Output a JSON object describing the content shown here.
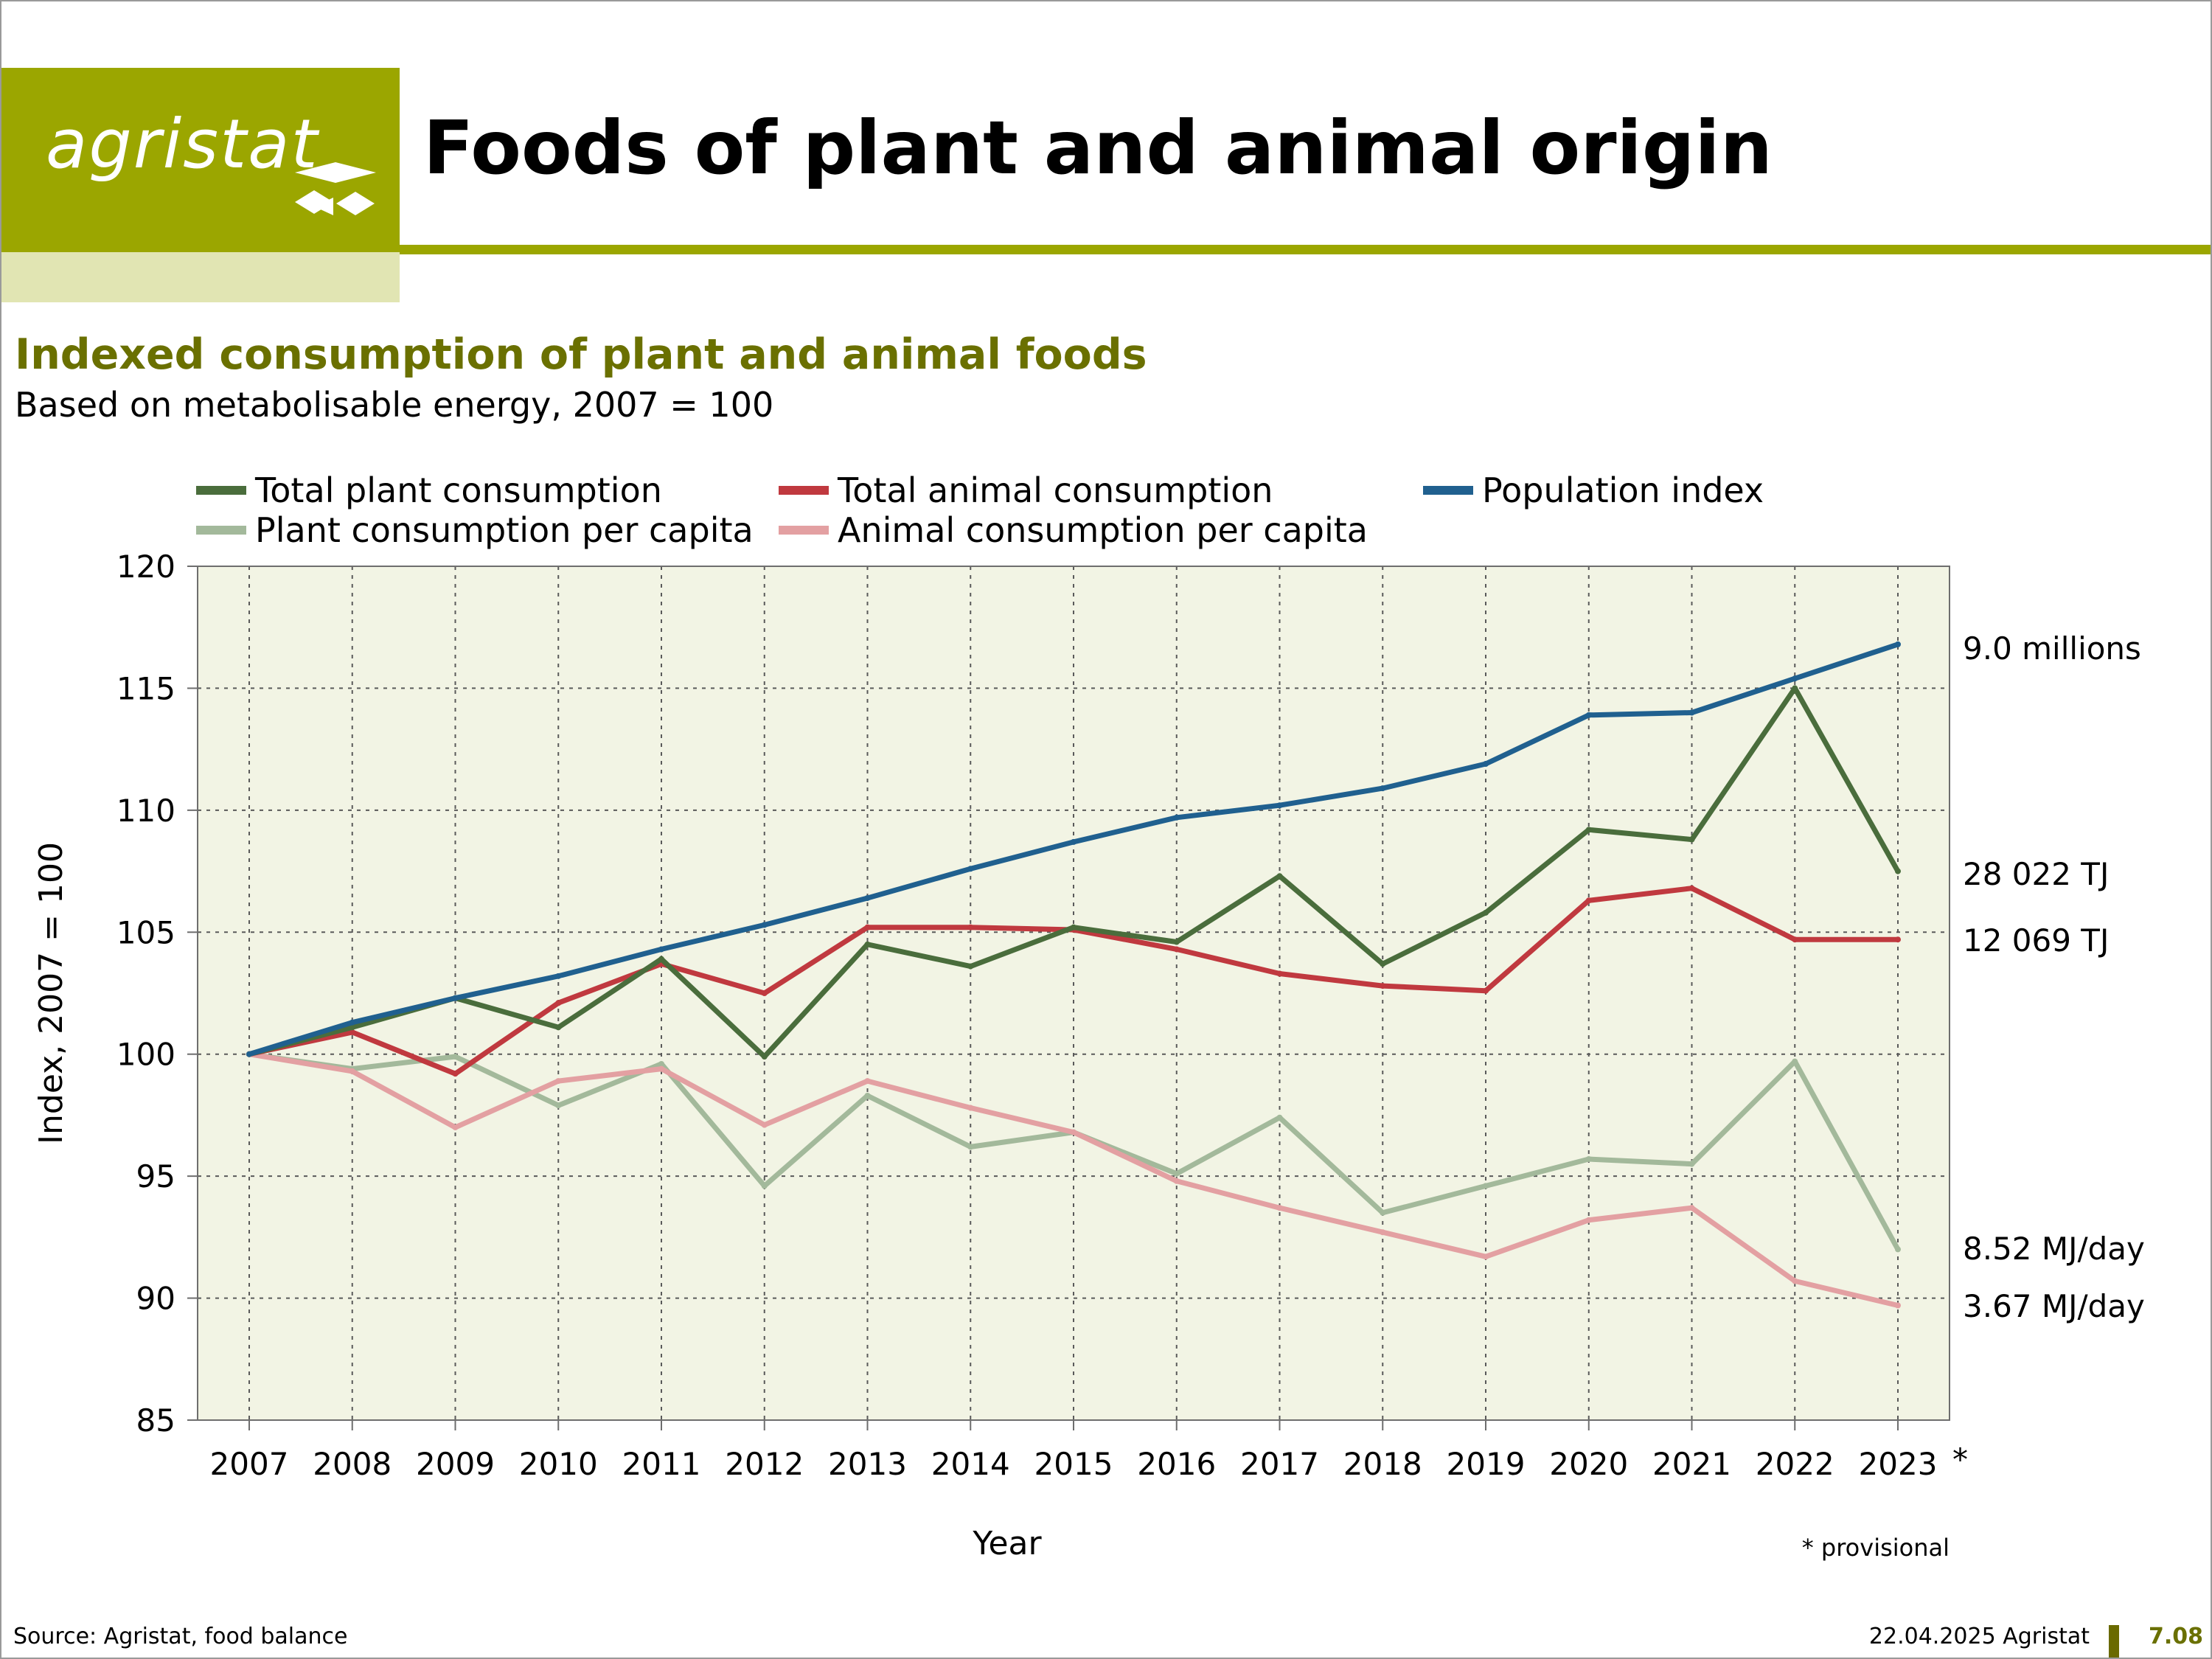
{
  "header": {
    "logo_text": "agristat",
    "title": "Foods of plant and animal origin"
  },
  "chart": {
    "subtitle": "Indexed consumption of plant and animal foods",
    "subsubtitle": "Based on metabolisable energy, 2007 = 100",
    "footnote": "* provisional",
    "provisional_marker": "*"
  },
  "footer": {
    "source": "Source: Agristat, food balance",
    "date": "22.04.2025 Agristat",
    "page_number": "7.08"
  },
  "colors": {
    "brand_olive": "#9ba600",
    "brand_light": "#e1e5b3",
    "plot_background": "#f2f4e4",
    "total_plant": "#4a6d3c",
    "plant_per_capita": "#a3b99b",
    "total_animal": "#c0393f",
    "animal_per_capita": "#e3a0a2",
    "population": "#20608f"
  },
  "chart_data": {
    "type": "line",
    "title": "Indexed consumption of plant and animal foods",
    "subtitle": "Based on metabolisable energy, 2007 = 100",
    "xlabel": "Year",
    "ylabel": "Index, 2007 = 100",
    "ylim": [
      85,
      120
    ],
    "yticks": [
      85,
      90,
      95,
      100,
      105,
      110,
      115,
      120
    ],
    "grid": true,
    "legend_position": "top",
    "x": [
      "2007",
      "2008",
      "2009",
      "2010",
      "2011",
      "2012",
      "2013",
      "2014",
      "2015",
      "2016",
      "2017",
      "2018",
      "2019",
      "2020",
      "2021",
      "2022",
      "2023"
    ],
    "series": [
      {
        "name": "Total plant consumption",
        "color": "#4a6d3c",
        "values": [
          100,
          101.1,
          102.3,
          101.1,
          103.9,
          99.9,
          104.5,
          103.6,
          105.2,
          104.6,
          107.3,
          103.7,
          105.8,
          109.2,
          108.8,
          115.0,
          107.5
        ],
        "end_label": "28 022  TJ"
      },
      {
        "name": "Total animal consumption",
        "color": "#c0393f",
        "values": [
          100,
          100.9,
          99.2,
          102.1,
          103.7,
          102.5,
          105.2,
          105.2,
          105.1,
          104.3,
          103.3,
          102.8,
          102.6,
          106.3,
          106.8,
          104.7,
          104.7
        ],
        "end_label": "12 069  TJ"
      },
      {
        "name": "Population index",
        "color": "#20608f",
        "values": [
          100,
          101.3,
          102.3,
          103.2,
          104.3,
          105.3,
          106.4,
          107.6,
          108.7,
          109.7,
          110.2,
          110.9,
          111.9,
          113.9,
          114.0,
          115.4,
          116.8
        ],
        "end_label": "9.0  millions"
      },
      {
        "name": "Plant consumption per capita",
        "color": "#a3b99b",
        "values": [
          100,
          99.4,
          99.9,
          97.9,
          99.6,
          94.6,
          98.3,
          96.2,
          96.8,
          95.1,
          97.4,
          93.5,
          94.6,
          95.7,
          95.5,
          99.7,
          92.0
        ],
        "end_label": "8.52  MJ/day"
      },
      {
        "name": "Animal consumption per capita",
        "color": "#e3a0a2",
        "values": [
          100,
          99.3,
          97.0,
          98.9,
          99.4,
          97.1,
          98.9,
          97.8,
          96.8,
          94.8,
          93.7,
          92.7,
          91.7,
          93.2,
          93.7,
          90.7,
          89.7
        ],
        "end_label": "3.67  MJ/day"
      }
    ]
  }
}
